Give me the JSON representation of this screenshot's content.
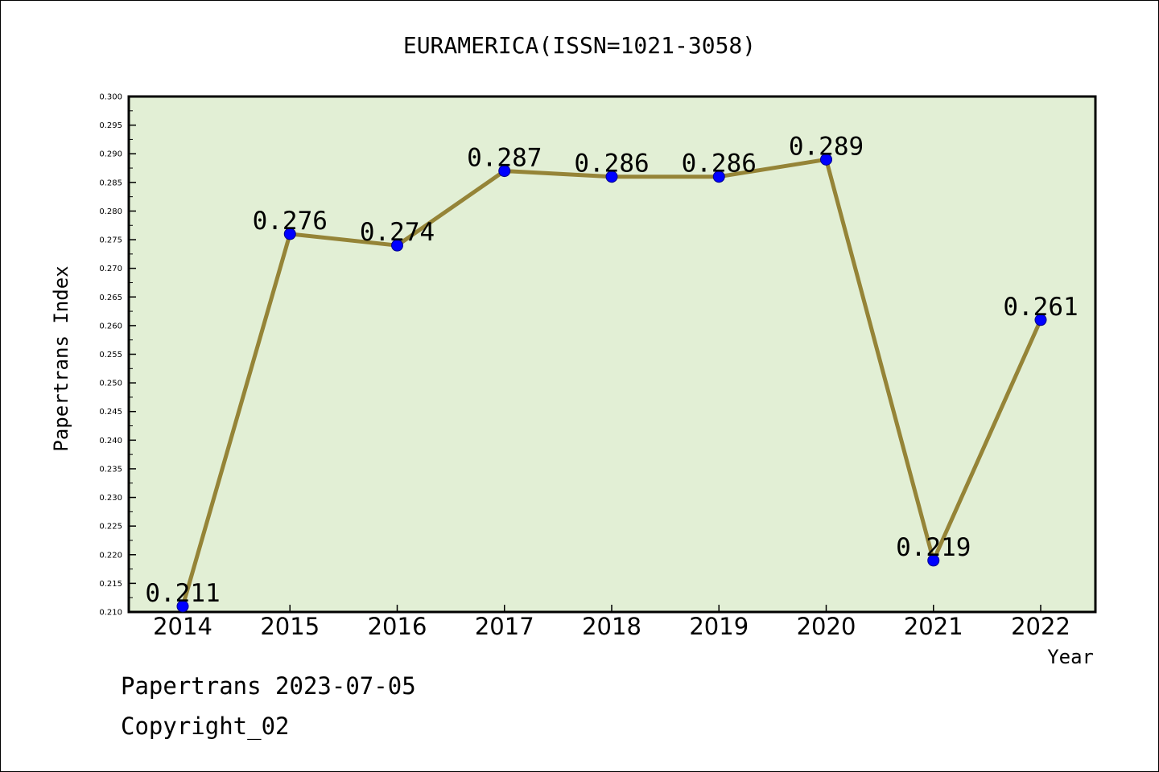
{
  "chart_data": {
    "type": "line",
    "title": "EURAMERICA(ISSN=1021-3058)",
    "xlabel": "Year",
    "ylabel": "Papertrans Index",
    "categories": [
      "2014",
      "2015",
      "2016",
      "2017",
      "2018",
      "2019",
      "2020",
      "2021",
      "2022"
    ],
    "values": [
      0.211,
      0.276,
      0.274,
      0.287,
      0.286,
      0.286,
      0.289,
      0.219,
      0.261
    ],
    "data_labels": [
      "0.211",
      "0.276",
      "0.274",
      "0.287",
      "0.286",
      "0.286",
      "0.289",
      "0.219",
      "0.261"
    ],
    "ylim": [
      0.21,
      0.3
    ],
    "y_ticks": [
      "0.210",
      "0.215",
      "0.220",
      "0.225",
      "0.230",
      "0.235",
      "0.240",
      "0.245",
      "0.250",
      "0.255",
      "0.260",
      "0.265",
      "0.270",
      "0.275",
      "0.280",
      "0.285",
      "0.290",
      "0.295",
      "0.300"
    ],
    "grid": false,
    "colors": {
      "plot_background": "#e2efd5",
      "line": "#958437",
      "marker": "#0000ff"
    }
  },
  "footer": {
    "line1": "Papertrans 2023-07-05",
    "line2": "Copyright_02"
  }
}
